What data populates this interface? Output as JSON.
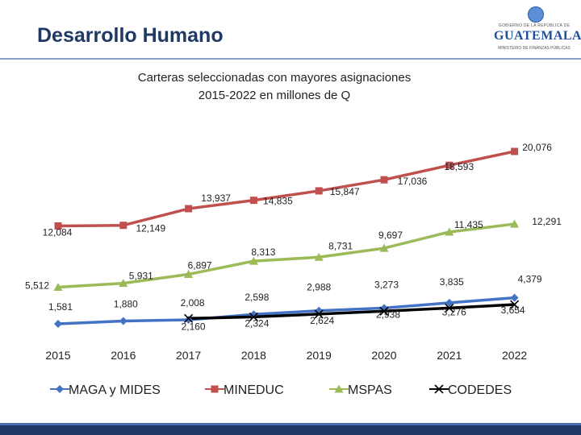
{
  "header": {
    "title": "Desarrollo Humano",
    "logo": {
      "small_text": "GOBIERNO DE LA REPÚBLICA DE",
      "main_text": "GUATEMALA",
      "sub_text": "MINISTERIO DE FINANZAS PÚBLICAS",
      "icon": "national-emblem-icon"
    }
  },
  "colors": {
    "title": "#1f3864",
    "MAGA y MIDES": "#4472c4",
    "MINEDUC": "#c0504d",
    "MSPAS": "#9bbb59",
    "CODEDES": "#000000",
    "footer": "#1f3864"
  },
  "chart_data": {
    "type": "line",
    "title": "Carteras seleccionadas con mayores asignaciones",
    "subtitle": "2015-2022 en millones de Q",
    "x": [
      "2015",
      "2016",
      "2017",
      "2018",
      "2019",
      "2020",
      "2021",
      "2022"
    ],
    "series": [
      {
        "name": "MAGA y MIDES",
        "marker": "diamond",
        "values": [
          1581,
          1880,
          2008,
          2598,
          2988,
          3273,
          3835,
          4379
        ],
        "labels": [
          "1,581",
          "1,880",
          "2,008",
          "2,598",
          "2,988",
          "3,273",
          "3,835",
          "4,379"
        ]
      },
      {
        "name": "MINEDUC",
        "marker": "square",
        "values": [
          12084,
          12149,
          13937,
          14835,
          15847,
          17036,
          18593,
          20076
        ],
        "labels": [
          "12,084",
          "12,149",
          "13,937",
          "14,835",
          "15,847",
          "17,036",
          "18,593",
          "20,076"
        ]
      },
      {
        "name": "MSPAS",
        "marker": "triangle",
        "values": [
          5512,
          5931,
          6897,
          8313,
          8731,
          9697,
          11435,
          12291
        ],
        "labels": [
          "5,512",
          "5,931",
          "6,897",
          "8,313",
          "8,731",
          "9,697",
          "11,435",
          "12,291"
        ]
      },
      {
        "name": "CODEDES",
        "marker": "x",
        "values": [
          null,
          null,
          2160,
          2324,
          2624,
          2938,
          3276,
          3654
        ],
        "labels": [
          null,
          null,
          "2,160",
          "2,324",
          "2,624",
          "2,938",
          "3,276",
          "3,654"
        ]
      }
    ],
    "legend": "bottom",
    "grid": false
  }
}
